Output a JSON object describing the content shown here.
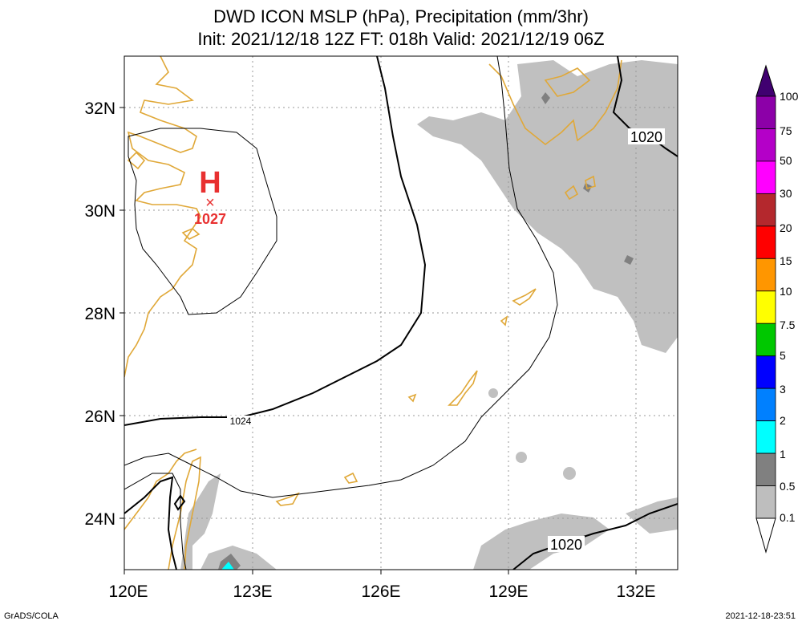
{
  "title_line1": "DWD ICON MSLP (hPa), Precipitation (mm/3hr)",
  "title_line2": "Init: 2021/12/18 12Z  FT: 018h  Valid: 2021/12/19 06Z",
  "axes": {
    "x_ticks": [
      "120E",
      "123E",
      "126E",
      "129E",
      "132E"
    ],
    "y_ticks": [
      "32N",
      "30N",
      "28N",
      "26N",
      "24N"
    ]
  },
  "pressure_labels": {
    "high_marker": "H",
    "high_value": "1027",
    "isobar_1024": "1024",
    "isobar_1020_ne": "1020",
    "isobar_1020_se": "1020"
  },
  "colorbar": {
    "labels": [
      "100",
      "75",
      "50",
      "30",
      "20",
      "15",
      "10",
      "7.5",
      "5",
      "3",
      "2",
      "1",
      "0.5",
      "0.1"
    ],
    "colors": [
      "#8c00a8",
      "#b400c8",
      "#ff00ff",
      "#b4282d",
      "#ff0000",
      "#ff9600",
      "#ffff00",
      "#00c800",
      "#0000ff",
      "#0080ff",
      "#00ffff",
      "#808080",
      "#bebebe"
    ],
    "top_arrow_color": "#400070"
  },
  "colors": {
    "coast": "#e0a838",
    "high": "#e83030",
    "precip_light": "#c0c0c0",
    "precip_medium": "#808080",
    "precip_cyan": "#00ffff"
  },
  "footer_left": "GrADS/COLA",
  "footer_right": "2021-12-18-23:51"
}
